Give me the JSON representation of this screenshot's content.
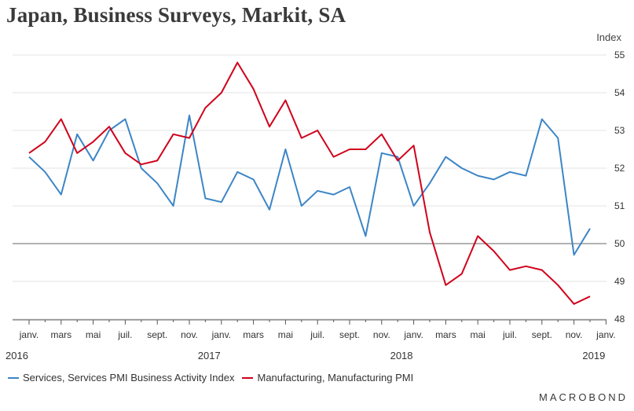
{
  "chart_data": {
    "type": "line",
    "title": "Japan, Business Surveys, Markit, SA",
    "ylabel": "Index",
    "ylim": [
      48,
      55
    ],
    "yticks": [
      48,
      49,
      50,
      51,
      52,
      53,
      54,
      55
    ],
    "reference_line": 50,
    "x_tick_labels": [
      {
        "i": 0,
        "label": "janv."
      },
      {
        "i": 2,
        "label": "mars"
      },
      {
        "i": 4,
        "label": "mai"
      },
      {
        "i": 6,
        "label": "juil."
      },
      {
        "i": 8,
        "label": "sept."
      },
      {
        "i": 10,
        "label": "nov."
      },
      {
        "i": 12,
        "label": "janv."
      },
      {
        "i": 14,
        "label": "mars"
      },
      {
        "i": 16,
        "label": "mai"
      },
      {
        "i": 18,
        "label": "juil."
      },
      {
        "i": 20,
        "label": "sept."
      },
      {
        "i": 22,
        "label": "nov."
      },
      {
        "i": 24,
        "label": "janv."
      },
      {
        "i": 26,
        "label": "mars"
      },
      {
        "i": 28,
        "label": "mai"
      },
      {
        "i": 30,
        "label": "juil."
      },
      {
        "i": 32,
        "label": "sept."
      },
      {
        "i": 34,
        "label": "nov."
      },
      {
        "i": 36,
        "label": "janv."
      }
    ],
    "year_labels": [
      {
        "i": 0,
        "label": "2016"
      },
      {
        "i": 12,
        "label": "2017"
      },
      {
        "i": 24,
        "label": "2018"
      },
      {
        "i": 36,
        "label": "2019"
      }
    ],
    "x_count": 37,
    "series": [
      {
        "name": "Services, Services PMI Business Activity Index",
        "color": "#3d85c6",
        "values": [
          52.3,
          51.9,
          51.3,
          52.9,
          52.2,
          53.0,
          53.3,
          52.0,
          51.6,
          51.0,
          53.4,
          51.2,
          51.1,
          51.9,
          51.7,
          50.9,
          52.5,
          51.0,
          51.4,
          51.3,
          51.5,
          50.2,
          52.4,
          52.3,
          51.0,
          51.6,
          52.3,
          52.0,
          51.8,
          51.7,
          51.9,
          51.8,
          53.3,
          52.8,
          49.7,
          50.4
        ]
      },
      {
        "name": "Manufacturing, Manufacturing PMI",
        "color": "#d0021b",
        "values": [
          52.4,
          52.7,
          53.3,
          52.4,
          52.7,
          53.1,
          52.4,
          52.1,
          52.2,
          52.9,
          52.8,
          53.6,
          54.0,
          54.8,
          54.1,
          53.1,
          53.8,
          52.8,
          53.0,
          52.3,
          52.5,
          52.5,
          52.9,
          52.2,
          52.6,
          50.3,
          48.9,
          49.2,
          50.2,
          49.8,
          49.3,
          49.4,
          49.3,
          48.9,
          48.4,
          48.6
        ]
      }
    ]
  },
  "legend": [
    {
      "label": "Services, Services PMI Business Activity Index",
      "color": "#3d85c6"
    },
    {
      "label": "Manufacturing, Manufacturing PMI",
      "color": "#d0021b"
    }
  ],
  "brand": "MACROBOND"
}
